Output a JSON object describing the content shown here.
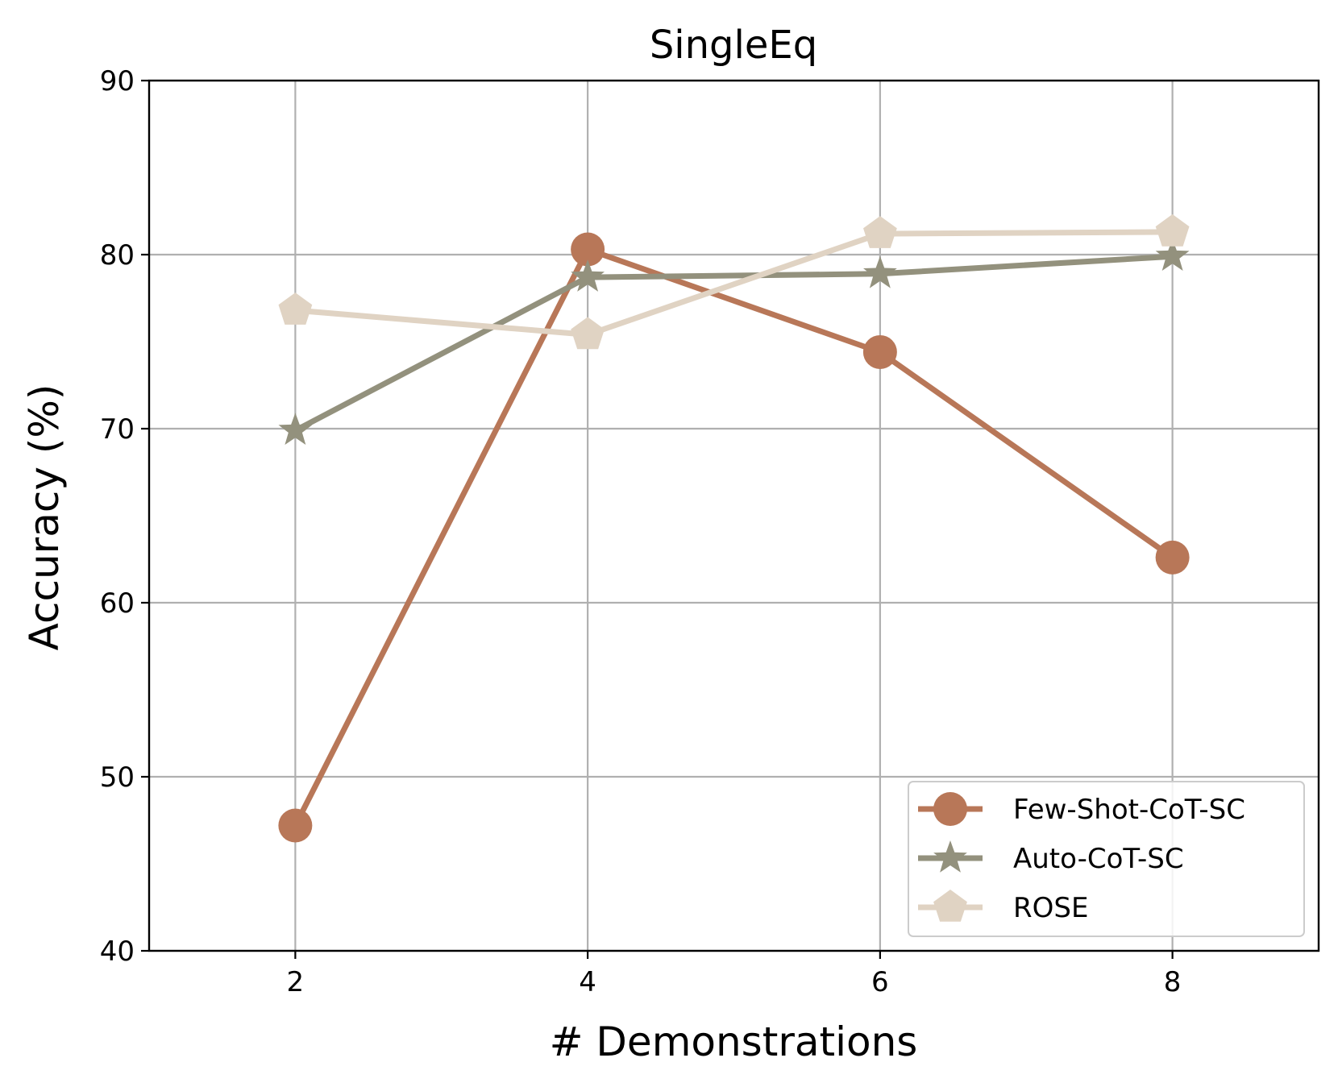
{
  "chart_data": {
    "type": "line",
    "title": "SingleEq",
    "xlabel": "# Demonstrations",
    "ylabel": "Accuracy (%)",
    "x": [
      2,
      4,
      6,
      8
    ],
    "xlim": [
      1,
      9
    ],
    "ylim": [
      40,
      90
    ],
    "xticks": [
      2,
      4,
      6,
      8
    ],
    "yticks": [
      40,
      50,
      60,
      70,
      80,
      90
    ],
    "grid": true,
    "legend_position": "lower-right",
    "series": [
      {
        "name": "Few-Shot-CoT-SC",
        "values": [
          47.2,
          80.3,
          74.4,
          62.6
        ],
        "color": "#b87758",
        "marker": "circle"
      },
      {
        "name": "Auto-CoT-SC",
        "values": [
          69.9,
          78.7,
          78.9,
          79.9
        ],
        "color": "#93917d",
        "marker": "star"
      },
      {
        "name": "ROSE",
        "values": [
          76.8,
          75.4,
          81.2,
          81.3
        ],
        "color": "#e0d3c3",
        "marker": "pentagon"
      }
    ]
  }
}
